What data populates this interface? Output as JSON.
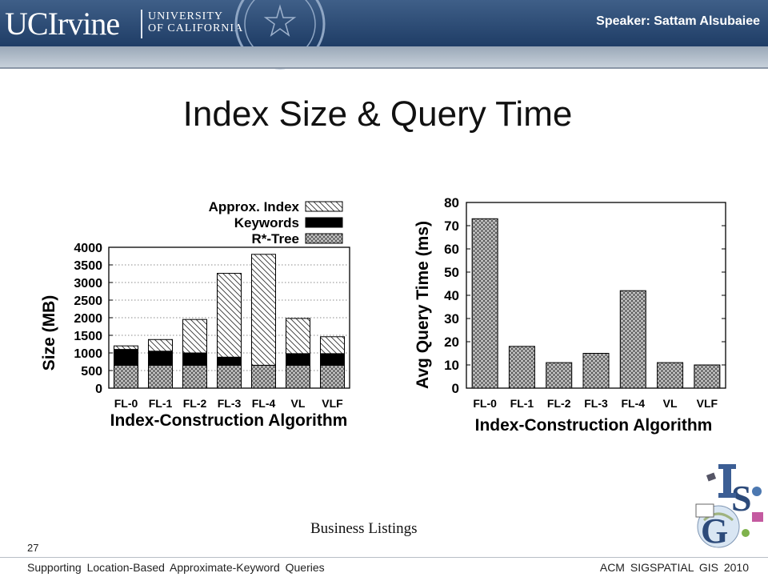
{
  "header": {
    "logo_main": "UCIrvine",
    "logo_university": "UNIVERSITY",
    "logo_of_california": "OF CALIFORNIA",
    "speaker": "Speaker: Sattam Alsubaiee"
  },
  "title": "Index Size & Query Time",
  "caption": "Business Listings",
  "page_number": "27",
  "footer": {
    "left": "Supporting Location-Based Approximate-Keyword Queries",
    "right": "ACM SIGSPATIAL GIS 2010"
  },
  "colors": {
    "header_dark": "#1f3d66",
    "header_band": "#b4bfcc",
    "bar_stroke": "#000000",
    "keywords_fill": "#000000"
  },
  "chart_data": [
    {
      "type": "bar",
      "stacked": true,
      "categories": [
        "FL-0",
        "FL-1",
        "FL-2",
        "FL-3",
        "FL-4",
        "VL",
        "VLF"
      ],
      "series": [
        {
          "name": "R*-Tree",
          "pattern": "crosshatch",
          "values": [
            650,
            650,
            650,
            650,
            650,
            650,
            650
          ]
        },
        {
          "name": "Keywords",
          "pattern": "solid-black",
          "values": [
            450,
            400,
            350,
            230,
            0,
            330,
            330
          ]
        },
        {
          "name": "Approx. Index",
          "pattern": "diagonal",
          "values": [
            100,
            330,
            950,
            2380,
            3150,
            1000,
            480
          ]
        }
      ],
      "xlabel": "Index-Construction Algorithm",
      "ylabel": "Size (MB)",
      "ylim": [
        0,
        4000
      ],
      "yticks": [
        0,
        500,
        1000,
        1500,
        2000,
        2500,
        3000,
        3500,
        4000
      ],
      "legend_position": "top-right, above plot"
    },
    {
      "type": "bar",
      "categories": [
        "FL-0",
        "FL-1",
        "FL-2",
        "FL-3",
        "FL-4",
        "VL",
        "VLF"
      ],
      "series": [
        {
          "values": [
            73,
            18,
            11,
            15,
            42,
            11,
            10
          ]
        }
      ],
      "xlabel": "Index-Construction Algorithm",
      "ylabel": "Avg Query Time (ms)",
      "ylim": [
        0,
        80
      ],
      "yticks": [
        0,
        10,
        20,
        30,
        40,
        50,
        60,
        70,
        80
      ]
    }
  ]
}
